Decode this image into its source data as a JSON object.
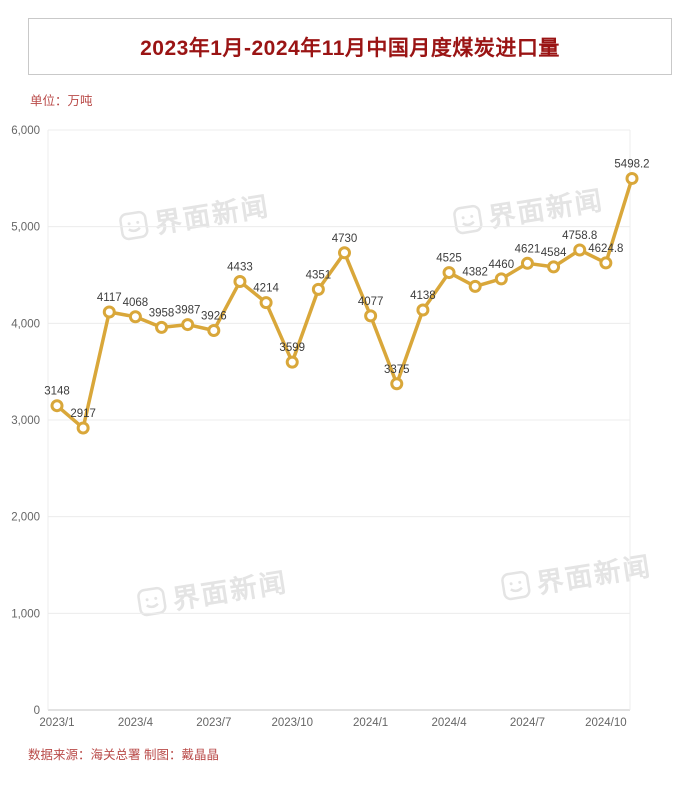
{
  "header": {
    "title": "2023年1月-2024年11月中国月度煤炭进口量"
  },
  "unit_label": "单位：万吨",
  "watermark": {
    "text": "界面新闻"
  },
  "footer": {
    "source": "数据来源：海关总署 制图：戴晶晶"
  },
  "chart_data": {
    "type": "line",
    "title": "2023年1月-2024年11月中国月度煤炭进口量",
    "ylabel": "万吨",
    "xlabel": "",
    "grid": true,
    "legend": "none",
    "ylim": [
      0,
      6000
    ],
    "line_color": "#d9a73a",
    "marker_fill": "#ffffff",
    "categories": [
      "2023/1",
      "2023/2",
      "2023/3",
      "2023/4",
      "2023/5",
      "2023/6",
      "2023/7",
      "2023/8",
      "2023/9",
      "2023/10",
      "2023/11",
      "2023/12",
      "2024/1",
      "2024/2",
      "2024/3",
      "2024/4",
      "2024/5",
      "2024/6",
      "2024/7",
      "2024/8",
      "2024/9",
      "2024/10",
      "2024/11"
    ],
    "values": [
      3148,
      2917,
      4117,
      4068,
      3958,
      3987,
      3926,
      4433,
      4214,
      3599,
      4351,
      4730,
      4077,
      3375,
      4138,
      4525,
      4382,
      4460,
      4621,
      4584,
      4758.8,
      4624.8,
      5498.2
    ],
    "point_labels": [
      "3148",
      "2917",
      "4117",
      "4068",
      "3958",
      "3987",
      "3926",
      "4433",
      "4214",
      "3599",
      "4351",
      "4730",
      "4077",
      "3375",
      "4138",
      "4525",
      "4382",
      "4460",
      "4621",
      "4584",
      "4758.8",
      "4624.8",
      "5498.2"
    ],
    "x_ticks": [
      {
        "index": 0,
        "label": "2023/1"
      },
      {
        "index": 3,
        "label": "2023/4"
      },
      {
        "index": 6,
        "label": "2023/7"
      },
      {
        "index": 9,
        "label": "2023/10"
      },
      {
        "index": 12,
        "label": "2024/1"
      },
      {
        "index": 15,
        "label": "2024/4"
      },
      {
        "index": 18,
        "label": "2024/7"
      },
      {
        "index": 21,
        "label": "2024/10"
      }
    ],
    "y_ticks": [
      {
        "value": 0,
        "label": "0"
      },
      {
        "value": 1000,
        "label": "1,000"
      },
      {
        "value": 2000,
        "label": "2,000"
      },
      {
        "value": 3000,
        "label": "3,000"
      },
      {
        "value": 4000,
        "label": "4,000"
      },
      {
        "value": 5000,
        "label": "5,000"
      },
      {
        "value": 6000,
        "label": "6,000"
      }
    ]
  }
}
